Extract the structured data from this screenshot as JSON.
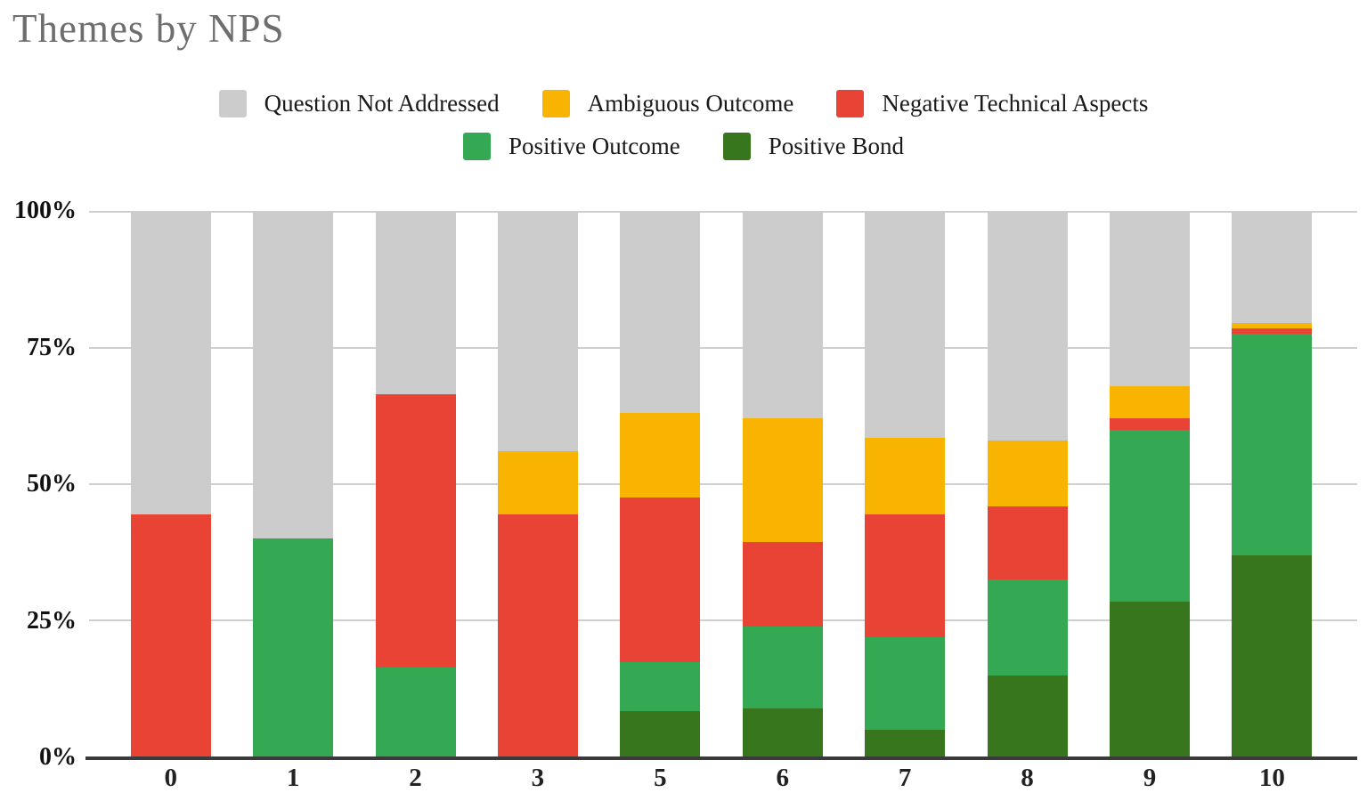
{
  "title": "Themes by NPS",
  "colors": {
    "question_not_addressed": "#cccccc",
    "ambiguous_outcome": "#f9b402",
    "negative_technical_aspects": "#e84335",
    "positive_outcome": "#34a853",
    "positive_bond": "#38761d",
    "gridline": "#cfcfcf",
    "axis_line": "#3a3a3a",
    "title_text": "#6e6e6e"
  },
  "legend": {
    "rows": [
      [
        {
          "label": "Question Not Addressed",
          "color_key": "question_not_addressed"
        },
        {
          "label": "Ambiguous Outcome",
          "color_key": "ambiguous_outcome"
        },
        {
          "label": "Negative Technical Aspects",
          "color_key": "negative_technical_aspects"
        }
      ],
      [
        {
          "label": "Positive Outcome",
          "color_key": "positive_outcome"
        },
        {
          "label": "Positive Bond",
          "color_key": "positive_bond"
        }
      ]
    ]
  },
  "chart_data": {
    "type": "bar",
    "stacked": true,
    "stack_total_percent": 100,
    "title": "Themes by NPS",
    "xlabel": "",
    "ylabel": "",
    "categories": [
      "0",
      "1",
      "2",
      "3",
      "5",
      "6",
      "7",
      "8",
      "9",
      "10"
    ],
    "y_ticks": [
      {
        "label": "100%",
        "value": 100
      },
      {
        "label": "75%",
        "value": 75
      },
      {
        "label": "50%",
        "value": 50
      },
      {
        "label": "25%",
        "value": 25
      },
      {
        "label": "0%",
        "value": 0
      }
    ],
    "ylim": [
      0,
      100
    ],
    "grid": true,
    "legend_position": "top-center",
    "series": [
      {
        "name": "Positive Bond",
        "color_key": "positive_bond",
        "values": [
          0,
          0,
          0,
          0,
          8.5,
          9,
          5,
          15,
          28.5,
          37
        ]
      },
      {
        "name": "Positive Outcome",
        "color_key": "positive_outcome",
        "values": [
          0,
          40,
          16.5,
          0,
          9,
          15,
          17,
          17.5,
          31.5,
          40.5
        ]
      },
      {
        "name": "Negative Technical Aspects",
        "color_key": "negative_technical_aspects",
        "values": [
          44.5,
          0,
          50,
          44.5,
          30,
          15.5,
          22.5,
          13.5,
          2,
          1
        ]
      },
      {
        "name": "Ambiguous Outcome",
        "color_key": "ambiguous_outcome",
        "values": [
          0,
          0,
          0,
          11.5,
          15.5,
          22.5,
          14,
          12,
          6,
          1
        ]
      },
      {
        "name": "Question Not Addressed",
        "color_key": "question_not_addressed",
        "values": [
          55.5,
          60,
          33.5,
          44,
          37,
          38,
          41.5,
          42,
          32,
          20.5
        ]
      }
    ]
  }
}
